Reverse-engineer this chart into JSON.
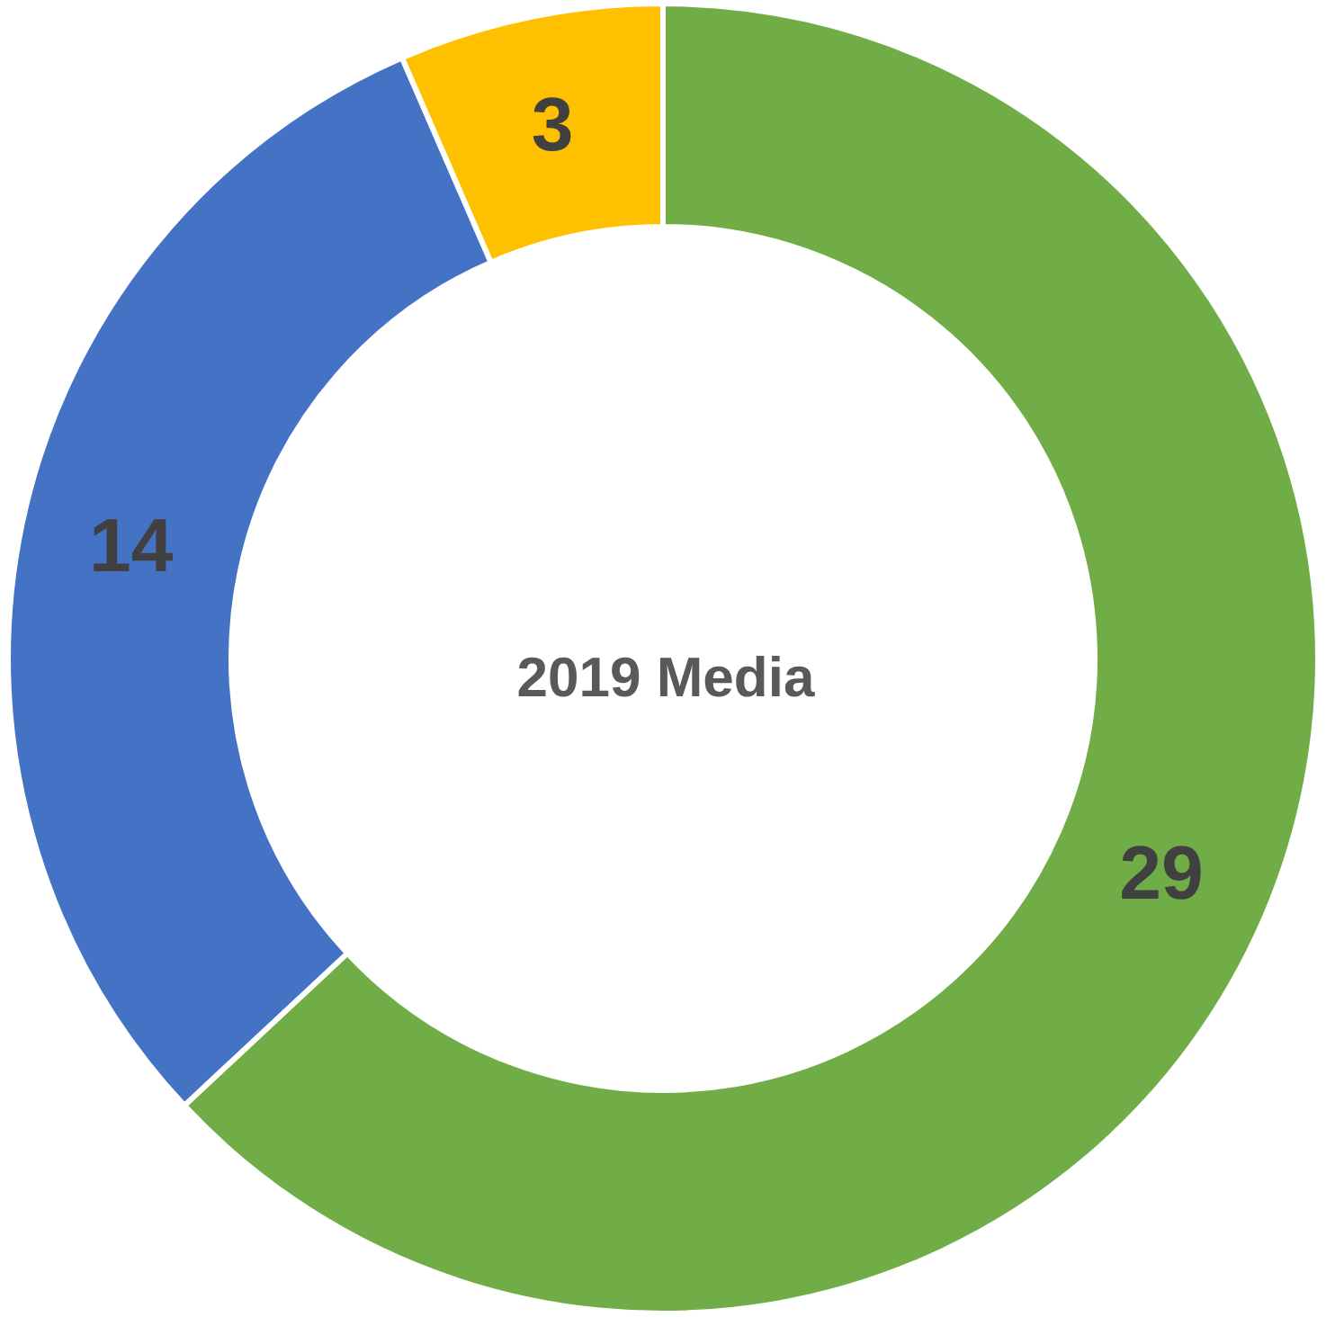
{
  "chart_data": {
    "type": "donut",
    "title": "2019 Media",
    "categories": [
      null,
      null,
      null
    ],
    "values": [
      29,
      14,
      3
    ],
    "colors": [
      "#70ad47",
      "#4472c4",
      "#ffc000"
    ],
    "data_labels": true
  }
}
